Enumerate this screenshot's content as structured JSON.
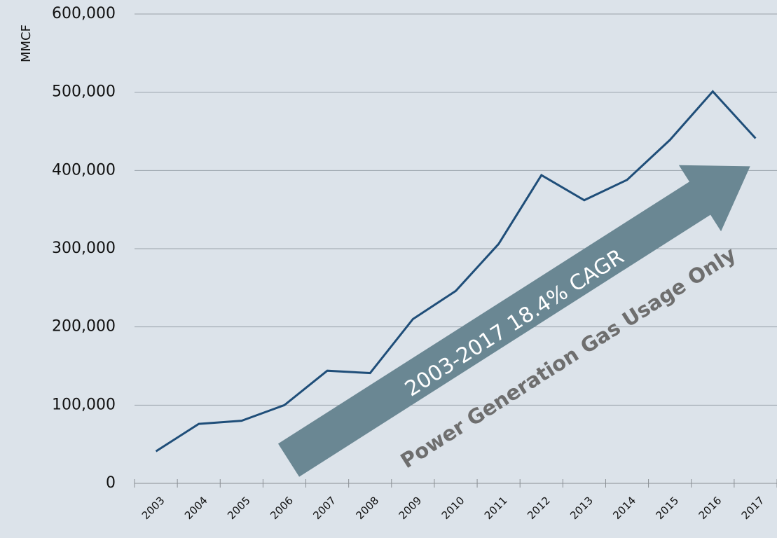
{
  "chart_data": {
    "type": "line",
    "y_label": "MMCF",
    "categories": [
      "2003",
      "2004",
      "2005",
      "2006",
      "2007",
      "2008",
      "2009",
      "2010",
      "2011",
      "2012",
      "2013",
      "2014",
      "2015",
      "2016",
      "2017"
    ],
    "series": [
      {
        "name": "Power Generation Gas Usage",
        "color": "#1f4e79",
        "values": [
          41000,
          76000,
          80000,
          100000,
          144000,
          141000,
          210000,
          246000,
          306000,
          394000,
          362000,
          388000,
          439000,
          501000,
          441000
        ]
      }
    ],
    "ylim": [
      0,
      600000
    ],
    "yticks": [
      0,
      {
        "value": 100000,
        "label": "100,000"
      },
      {
        "value": 200000,
        "label": "200,000"
      },
      {
        "value": 300000,
        "label": "300,000"
      },
      {
        "value": 400000,
        "label": "400,000"
      },
      {
        "value": 500000,
        "label": "500,000"
      },
      {
        "value": 600000,
        "label": "600,000"
      }
    ],
    "grid": true,
    "annotations": [
      "2003-2017 18.4% CAGR",
      "Power Generation Gas Usage Only"
    ]
  }
}
